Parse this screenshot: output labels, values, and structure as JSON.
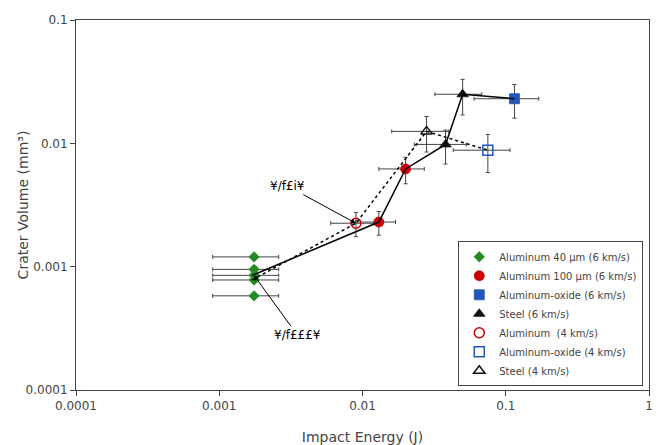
{
  "chart_data": {
    "type": "scatter",
    "xlabel": "Impact Energy (J)",
    "ylabel": "Crater Volume (mm³)",
    "log": true,
    "grid": false,
    "legend": "lower right",
    "xlim": [
      0.0001,
      1.0
    ],
    "xticks": [
      0.0001,
      0.001,
      0.01,
      0.1,
      1
    ],
    "ylim": [
      0.0001,
      0.1
    ],
    "yticks": [
      0.0001,
      0.001,
      0.01,
      0.1
    ],
    "series": [
      {
        "name": "Aluminum 40 μm (6 km/s)",
        "color": "#228B22",
        "marker": "diamond",
        "x": [
          0.00175,
          0.00175,
          0.00175,
          0.00175,
          0.00175
        ],
        "values": [
          0.0012,
          0.00095,
          0.00085,
          0.00078,
          0.00058
        ],
        "xerr_lo": [
          0.00085,
          0.00085,
          0.00085,
          0.00085,
          0.00085
        ],
        "xerr_hi": [
          0.00085,
          0.00085,
          0.00085,
          0.00085,
          0.00085
        ],
        "yerr_lo": [
          0.0,
          0.0,
          0.0,
          0.0,
          0.0
        ],
        "yerr_hi": [
          0.0,
          0.0,
          0.0,
          0.0,
          0.0
        ]
      },
      {
        "name": "Aluminum 100 μm (6 km/s)",
        "color": "#CC0000",
        "marker": "circle",
        "x": [
          0.013,
          0.02
        ],
        "values": [
          0.0023,
          0.0062
        ],
        "xerr_lo": [
          0.004,
          0.007
        ],
        "xerr_hi": [
          0.004,
          0.007
        ],
        "yerr_lo": [
          0.0005,
          0.0015
        ],
        "yerr_hi": [
          0.0005,
          0.0015
        ]
      },
      {
        "name": "Aluminum-oxide (6 km/s)",
        "color": "#2255BB",
        "marker": "square",
        "x": [
          0.115
        ],
        "values": [
          0.023
        ],
        "xerr_lo": [
          0.055
        ],
        "xerr_hi": [
          0.055
        ],
        "yerr_lo": [
          0.007
        ],
        "yerr_hi": [
          0.007
        ]
      },
      {
        "name": "Steel (6 km/s)",
        "color": "#111111",
        "marker": "triangle-up",
        "x": [
          0.038,
          0.05
        ],
        "values": [
          0.0098,
          0.025
        ],
        "xerr_lo": [
          0.015,
          0.018
        ],
        "xerr_hi": [
          0.015,
          0.018
        ],
        "yerr_lo": [
          0.003,
          0.008
        ],
        "yerr_hi": [
          0.003,
          0.008
        ]
      },
      {
        "name": "Aluminum  (4 km/s)",
        "color": "#CC0000",
        "marker": "circle-open",
        "x": [
          0.009
        ],
        "values": [
          0.00225
        ],
        "xerr_lo": [
          0.003
        ],
        "xerr_hi": [
          0.003
        ],
        "yerr_lo": [
          0.0005
        ],
        "yerr_hi": [
          0.0005
        ]
      },
      {
        "name": "Aluminum-oxide (4 km/s)",
        "color": "#2255BB",
        "marker": "square-open",
        "x": [
          0.075
        ],
        "values": [
          0.0088
        ],
        "xerr_lo": [
          0.032
        ],
        "xerr_hi": [
          0.032
        ],
        "yerr_lo": [
          0.003
        ],
        "yerr_hi": [
          0.003
        ]
      },
      {
        "name": "Steel (4 km/s)",
        "color": "#111111",
        "marker": "triangle-up-open",
        "x": [
          0.028
        ],
        "values": [
          0.0125
        ],
        "xerr_lo": [
          0.012
        ],
        "xerr_hi": [
          0.012
        ],
        "yerr_lo": [
          0.004
        ],
        "yerr_hi": [
          0.004
        ]
      },
      {
        "type": "line",
        "line_style": "solid",
        "color": "#000000",
        "x": [
          0.0017,
          0.013,
          0.02,
          0.038,
          0.05,
          0.115
        ],
        "values": [
          0.00085,
          0.0023,
          0.0062,
          0.0098,
          0.025,
          0.023
        ]
      },
      {
        "type": "line",
        "line_style": "dotted",
        "color": "#000000",
        "x": [
          0.0017,
          0.009,
          0.028,
          0.075
        ],
        "values": [
          0.00078,
          0.00225,
          0.0125,
          0.0088
        ]
      }
    ],
    "annotations": [
      {
        "text": "¥/f£i¥",
        "x": 0.009,
        "y": 0.00225,
        "text_x": 0.003,
        "text_y": 0.0045
      },
      {
        "text": "¥/f£££¥",
        "x": 0.00175,
        "y": 0.00085,
        "text_x": 0.0035,
        "text_y": 0.00028
      }
    ]
  }
}
